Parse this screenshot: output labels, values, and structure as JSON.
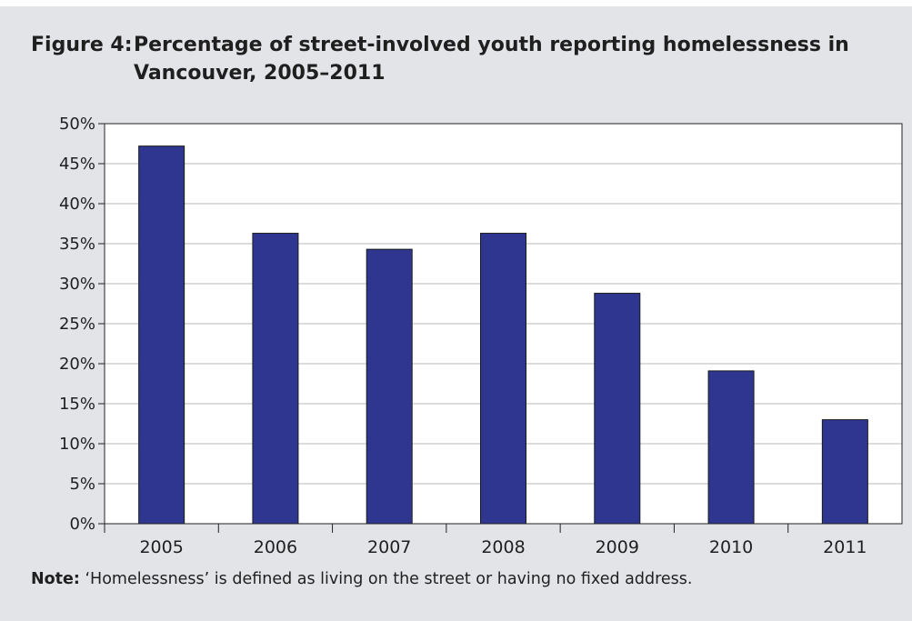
{
  "figure": {
    "label": "Figure 4:",
    "title": "Percentage of street-involved youth reporting homelessness in Vancouver, 2005–2011"
  },
  "note": {
    "label": "Note:",
    "text": " ‘Homelessness’ is defined as living on the street or having no fixed address."
  },
  "colors": {
    "panel": "#e3e4e8",
    "bar": "#2e3690",
    "bar_outline": "#1a1a1a",
    "gridline": "#b9b9b9"
  },
  "chart_data": {
    "type": "bar",
    "title": "Percentage of street-involved youth reporting homelessness in Vancouver, 2005–2011",
    "xlabel": "",
    "ylabel": "",
    "categories": [
      "2005",
      "2006",
      "2007",
      "2008",
      "2009",
      "2010",
      "2011"
    ],
    "values": [
      47.2,
      36.3,
      34.3,
      36.3,
      28.8,
      19.1,
      13.0
    ],
    "ylim": [
      0,
      50
    ],
    "yticks": [
      0,
      5,
      10,
      15,
      20,
      25,
      30,
      35,
      40,
      45,
      50
    ],
    "ytick_labels": [
      "0%",
      "5%",
      "10%",
      "15%",
      "20%",
      "25%",
      "30%",
      "35%",
      "40%",
      "45%",
      "50%"
    ],
    "grid": true,
    "legend": "none"
  }
}
